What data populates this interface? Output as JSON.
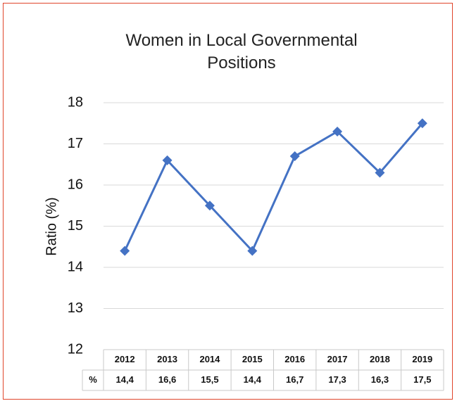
{
  "chart_data": {
    "type": "line",
    "title": "Women in Local Governmental Positions",
    "y_label": "Ratio (%)",
    "categories": [
      "2012",
      "2013",
      "2014",
      "2015",
      "2016",
      "2017",
      "2018",
      "2019"
    ],
    "series": [
      {
        "name": "%",
        "color": "#4472c4",
        "values": [
          14.4,
          16.6,
          15.5,
          14.4,
          16.7,
          17.3,
          16.3,
          17.5
        ],
        "value_labels": [
          "14,4",
          "16,6",
          "15,5",
          "14,4",
          "16,7",
          "17,3",
          "16,3",
          "17,5"
        ]
      }
    ],
    "ylim": [
      12,
      18
    ],
    "yticks": [
      12,
      13,
      14,
      15,
      16,
      17,
      18
    ],
    "grid": true
  }
}
